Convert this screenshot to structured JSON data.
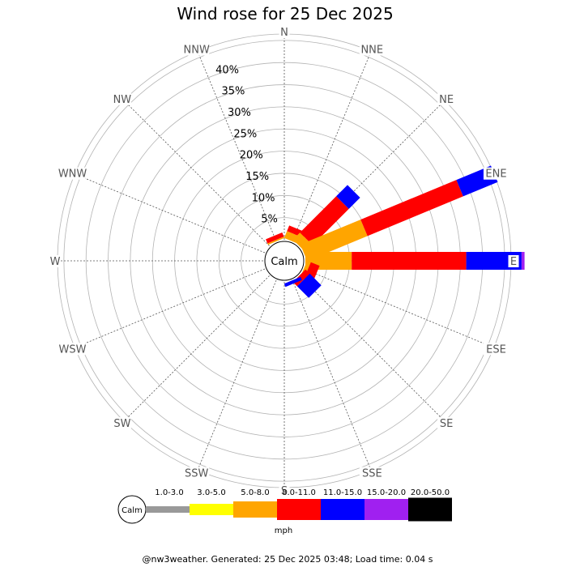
{
  "chart_data": {
    "type": "wind_rose",
    "title": "Wind rose for 25 Dec 2025",
    "directions": [
      "N",
      "NNE",
      "NE",
      "ENE",
      "E",
      "ESE",
      "SE",
      "SSE",
      "S",
      "SSW",
      "SW",
      "WSW",
      "W",
      "WNW",
      "NW",
      "NNW"
    ],
    "radial_ticks": [
      "5%",
      "10%",
      "15%",
      "20%",
      "25%",
      "30%",
      "35%",
      "40%"
    ],
    "radial_max_percent": 40,
    "calm_label": "Calm",
    "speed_unit": "mph",
    "speed_bins": [
      {
        "label": "1.0-3.0",
        "color": "#999999"
      },
      {
        "label": "3.0-5.0",
        "color": "#ffff00"
      },
      {
        "label": "5.0-8.0",
        "color": "#ffa500"
      },
      {
        "label": "8.0-11.0",
        "color": "#ff0000"
      },
      {
        "label": "11.0-15.0",
        "color": "#0000ff"
      },
      {
        "label": "15.0-20.0",
        "color": "#a020f0"
      },
      {
        "label": "20.0-50.0",
        "color": "#000000"
      }
    ],
    "series": [
      {
        "direction": "NNW",
        "cumulative_percent": [
          0,
          0,
          0.3,
          1.2,
          1.2,
          1.2,
          1.2
        ]
      },
      {
        "direction": "N",
        "cumulative_percent": [
          0,
          0,
          0,
          0,
          0,
          0,
          0
        ]
      },
      {
        "direction": "NNE",
        "cumulative_percent": [
          0,
          0,
          1.5,
          2.7,
          2.7,
          2.7,
          2.7
        ]
      },
      {
        "direction": "NE",
        "cumulative_percent": [
          0,
          0,
          2.0,
          12.3,
          15.5,
          15.5,
          15.5
        ]
      },
      {
        "direction": "ENE",
        "cumulative_percent": [
          0,
          0,
          13.1,
          33.9,
          41.4,
          41.4,
          41.4
        ]
      },
      {
        "direction": "E",
        "cumulative_percent": [
          0,
          0,
          9.3,
          32.3,
          43.4,
          44.0,
          44.0
        ]
      },
      {
        "direction": "ESE",
        "cumulative_percent": [
          0,
          0,
          0.8,
          2.7,
          2.7,
          2.7,
          2.7
        ]
      },
      {
        "direction": "SE",
        "cumulative_percent": [
          0,
          0,
          0,
          1.2,
          4.5,
          4.5,
          4.5
        ]
      },
      {
        "direction": "SSE",
        "cumulative_percent": [
          0,
          0,
          0,
          0,
          0.7,
          0.7,
          0.7
        ]
      },
      {
        "direction": "S",
        "cumulative_percent": [
          0,
          0,
          0,
          0,
          0,
          0,
          0
        ]
      }
    ]
  },
  "footer": "@nw3weather. Generated: 25 Dec 2025 03:48; Load time: 0.04 s"
}
